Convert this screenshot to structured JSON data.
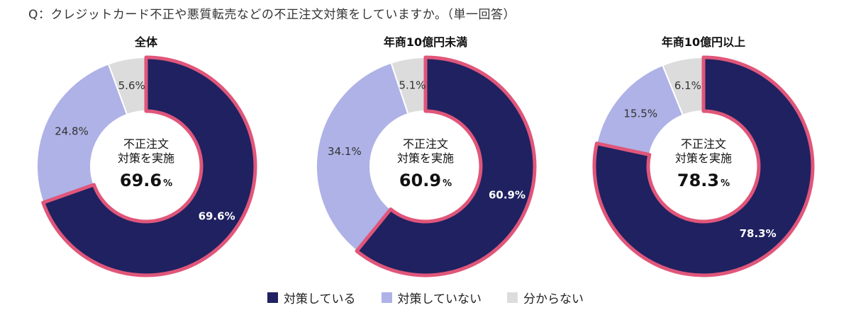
{
  "question": "Q：クレジットカード不正や悪質転売などの不正注文対策をしていますか。（単一回答）",
  "center": {
    "line1": "不正注文",
    "line2": "対策を実施",
    "unit": "%"
  },
  "colors": {
    "implemented": "#1f2160",
    "not_implemented": "#aeb2e6",
    "unknown": "#dcdcdc",
    "highlight": "#e0567a"
  },
  "legend": [
    {
      "key": "implemented",
      "label": "対策している"
    },
    {
      "key": "not_implemented",
      "label": "対策していない"
    },
    {
      "key": "unknown",
      "label": "分からない"
    }
  ],
  "chart_data": [
    {
      "type": "pie",
      "title": "全体",
      "categories": [
        "対策している",
        "対策していない",
        "分からない"
      ],
      "values": [
        69.6,
        24.8,
        5.6
      ],
      "labels": [
        "69.6%",
        "24.8%",
        "5.6%"
      ],
      "center_value": "69.6"
    },
    {
      "type": "pie",
      "title": "年商10億円未満",
      "categories": [
        "対策している",
        "対策していない",
        "分からない"
      ],
      "values": [
        60.9,
        34.1,
        5.1
      ],
      "labels": [
        "60.9%",
        "34.1%",
        "5.1%"
      ],
      "center_value": "60.9"
    },
    {
      "type": "pie",
      "title": "年商10億円以上",
      "categories": [
        "対策している",
        "対策していない",
        "分からない"
      ],
      "values": [
        78.3,
        15.5,
        6.1
      ],
      "labels": [
        "78.3%",
        "15.5%",
        "6.1%"
      ],
      "center_value": "78.3"
    }
  ]
}
